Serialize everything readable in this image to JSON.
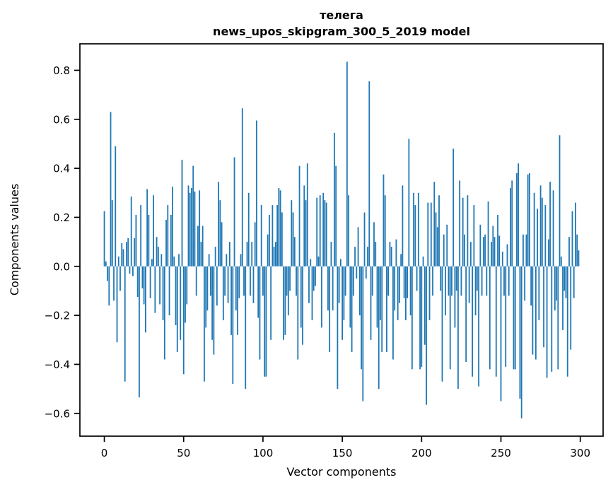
{
  "title": {
    "line1": "телега",
    "line2": "news_upos_skipgram_300_5_2019 model"
  },
  "chart_data": {
    "type": "bar",
    "title": "телега",
    "subtitle": "news_upos_skipgram_300_5_2019 model",
    "xlabel": "Vector components",
    "ylabel": "Components values",
    "xlim": [
      -15.4,
      314.4
    ],
    "ylim": [
      -0.693,
      0.908
    ],
    "xticks": [
      0,
      50,
      100,
      150,
      200,
      250,
      300
    ],
    "xtick_labels": [
      "0",
      "50",
      "100",
      "150",
      "200",
      "250",
      "300"
    ],
    "yticks": [
      -0.6,
      -0.4,
      -0.2,
      0.0,
      0.2,
      0.4,
      0.6,
      0.8
    ],
    "ytick_labels": [
      "−0.6",
      "−0.4",
      "−0.2",
      "0.0",
      "0.2",
      "0.4",
      "0.6",
      "0.8"
    ],
    "bar_color": "#1f77b4",
    "spine_color": "#000000",
    "grid": false,
    "legend": null,
    "n_components": 300,
    "values": [
      0.225,
      0.02,
      -0.06,
      -0.16,
      0.63,
      0.27,
      -0.14,
      0.49,
      -0.31,
      0.04,
      -0.1,
      0.095,
      0.07,
      -0.47,
      0.1,
      0.115,
      -0.03,
      0.285,
      -0.04,
      0.115,
      0.21,
      -0.125,
      -0.535,
      0.25,
      -0.09,
      -0.155,
      -0.27,
      0.315,
      0.21,
      -0.13,
      0.03,
      0.29,
      -0.19,
      0.12,
      0.08,
      -0.155,
      0.05,
      -0.22,
      -0.38,
      0.19,
      0.25,
      -0.2,
      0.21,
      0.325,
      0.04,
      -0.24,
      -0.35,
      0.05,
      -0.3,
      0.435,
      -0.44,
      -0.23,
      -0.155,
      0.33,
      0.3,
      0.32,
      0.41,
      0.305,
      -0.12,
      0.165,
      0.31,
      0.1,
      0.165,
      -0.47,
      -0.25,
      -0.18,
      0.05,
      -0.12,
      -0.3,
      -0.36,
      0.08,
      -0.16,
      0.345,
      0.27,
      0.18,
      -0.22,
      -0.12,
      0.05,
      -0.15,
      0.1,
      -0.28,
      -0.48,
      0.445,
      -0.18,
      -0.28,
      -0.13,
      0.05,
      0.645,
      -0.12,
      -0.5,
      0.1,
      0.3,
      -0.12,
      0.1,
      -0.15,
      0.18,
      0.595,
      -0.21,
      -0.38,
      0.25,
      -0.12,
      -0.45,
      -0.45,
      0.13,
      0.21,
      -0.3,
      0.25,
      0.08,
      0.1,
      0.25,
      0.32,
      0.31,
      0.22,
      -0.3,
      -0.28,
      -0.12,
      -0.2,
      -0.1,
      0.27,
      0.22,
      0.12,
      -0.12,
      -0.38,
      0.41,
      -0.25,
      -0.32,
      0.33,
      0.27,
      0.42,
      -0.15,
      0.03,
      -0.22,
      -0.1,
      -0.08,
      0.28,
      0.04,
      0.29,
      -0.25,
      0.3,
      0.27,
      0.26,
      -0.18,
      -0.35,
      0.1,
      -0.18,
      0.545,
      0.41,
      -0.5,
      -0.15,
      0.03,
      -0.3,
      -0.22,
      -0.12,
      0.835,
      0.29,
      -0.25,
      -0.35,
      -0.12,
      0.08,
      -0.05,
      0.16,
      -0.2,
      -0.42,
      -0.55,
      0.22,
      -0.05,
      0.08,
      0.755,
      -0.3,
      -0.12,
      0.18,
      0.1,
      -0.25,
      -0.5,
      -0.22,
      -0.35,
      0.375,
      0.29,
      -0.35,
      -0.12,
      0.1,
      0.08,
      -0.38,
      -0.18,
      0.11,
      -0.22,
      -0.15,
      0.05,
      0.33,
      -0.13,
      -0.22,
      -0.13,
      0.52,
      -0.2,
      -0.42,
      0.3,
      0.25,
      -0.1,
      0.3,
      -0.42,
      -0.41,
      0.04,
      -0.32,
      -0.565,
      0.26,
      -0.22,
      0.26,
      -0.12,
      0.345,
      0.22,
      0.16,
      0.29,
      -0.1,
      -0.47,
      0.13,
      -0.2,
      0.17,
      -0.12,
      -0.42,
      -0.12,
      0.48,
      -0.25,
      -0.1,
      -0.5,
      0.35,
      -0.12,
      0.28,
      0.13,
      -0.39,
      0.29,
      -0.15,
      0.1,
      -0.45,
      0.25,
      -0.2,
      -0.1,
      -0.49,
      0.17,
      -0.12,
      0.12,
      0.13,
      -0.12,
      0.265,
      -0.42,
      0.1,
      0.165,
      0.12,
      -0.45,
      0.21,
      0.125,
      -0.55,
      0.06,
      -0.12,
      -0.41,
      0.09,
      -0.12,
      0.32,
      0.35,
      -0.42,
      -0.42,
      0.38,
      0.42,
      -0.54,
      -0.62,
      0.13,
      -0.14,
      0.13,
      0.375,
      0.38,
      -0.16,
      -0.36,
      0.3,
      -0.38,
      0.235,
      -0.22,
      0.33,
      0.28,
      -0.33,
      0.25,
      -0.455,
      0.11,
      0.345,
      -0.43,
      0.31,
      -0.18,
      -0.14,
      -0.42,
      0.535,
      0.04,
      -0.26,
      -0.1,
      -0.13,
      -0.45,
      0.12,
      -0.34,
      0.225,
      -0.13,
      0.26,
      0.13,
      0.065
    ]
  }
}
